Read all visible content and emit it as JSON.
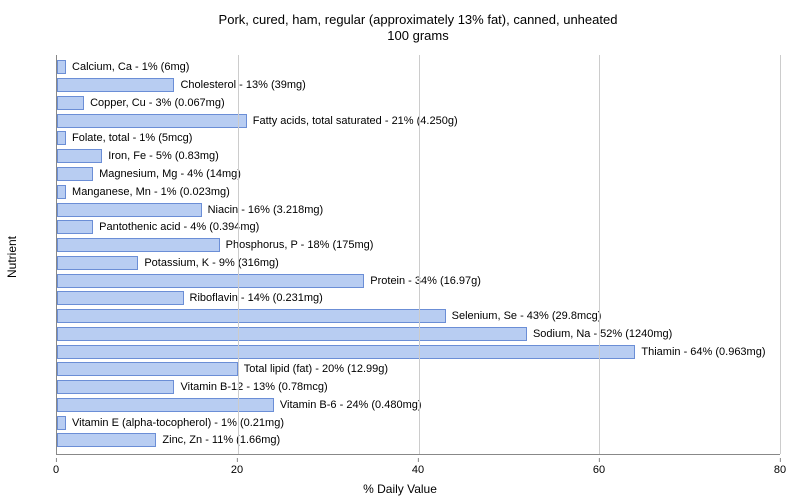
{
  "chart": {
    "type": "bar-horizontal",
    "title_line1": "Pork, cured, ham, regular (approximately 13% fat), canned, unheated",
    "title_line2": "100 grams",
    "title_fontsize": 13,
    "label_fontsize": 11,
    "x_label": "% Daily Value",
    "y_label": "Nutrient",
    "xlim": [
      0,
      80
    ],
    "xtick_step": 20,
    "xticks": [
      0,
      20,
      40,
      60,
      80
    ],
    "background_color": "#ffffff",
    "grid_color": "#cccccc",
    "axis_color": "#888888",
    "bar_fill": "#b8cdf2",
    "bar_border": "#6b8ed6",
    "text_color": "#000000",
    "rows": [
      {
        "label": "Calcium, Ca - 1% (6mg)",
        "value": 1
      },
      {
        "label": "Cholesterol - 13% (39mg)",
        "value": 13
      },
      {
        "label": "Copper, Cu - 3% (0.067mg)",
        "value": 3
      },
      {
        "label": "Fatty acids, total saturated - 21% (4.250g)",
        "value": 21
      },
      {
        "label": "Folate, total - 1% (5mcg)",
        "value": 1
      },
      {
        "label": "Iron, Fe - 5% (0.83mg)",
        "value": 5
      },
      {
        "label": "Magnesium, Mg - 4% (14mg)",
        "value": 4
      },
      {
        "label": "Manganese, Mn - 1% (0.023mg)",
        "value": 1
      },
      {
        "label": "Niacin - 16% (3.218mg)",
        "value": 16
      },
      {
        "label": "Pantothenic acid - 4% (0.394mg)",
        "value": 4
      },
      {
        "label": "Phosphorus, P - 18% (175mg)",
        "value": 18
      },
      {
        "label": "Potassium, K - 9% (316mg)",
        "value": 9
      },
      {
        "label": "Protein - 34% (16.97g)",
        "value": 34
      },
      {
        "label": "Riboflavin - 14% (0.231mg)",
        "value": 14
      },
      {
        "label": "Selenium, Se - 43% (29.8mcg)",
        "value": 43
      },
      {
        "label": "Sodium, Na - 52% (1240mg)",
        "value": 52
      },
      {
        "label": "Thiamin - 64% (0.963mg)",
        "value": 64
      },
      {
        "label": "Total lipid (fat) - 20% (12.99g)",
        "value": 20
      },
      {
        "label": "Vitamin B-12 - 13% (0.78mcg)",
        "value": 13
      },
      {
        "label": "Vitamin B-6 - 24% (0.480mg)",
        "value": 24
      },
      {
        "label": "Vitamin E (alpha-tocopherol) - 1% (0.21mg)",
        "value": 1
      },
      {
        "label": "Zinc, Zn - 11% (1.66mg)",
        "value": 11
      }
    ]
  }
}
